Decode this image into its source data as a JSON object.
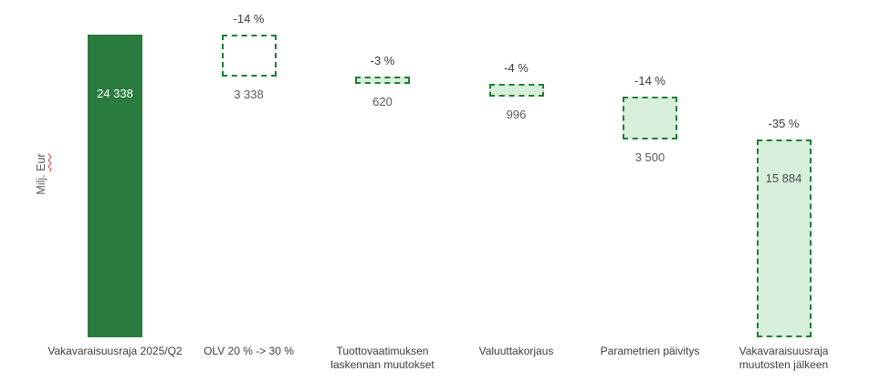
{
  "chart_data": {
    "type": "bar",
    "subtype": "waterfall",
    "title": "",
    "ylabel": "Milj. Eur",
    "ylabel_parts": {
      "prefix": "Milj. ",
      "underlined_word": "Eur"
    },
    "ylim": [
      0,
      24338
    ],
    "grid": false,
    "legend": null,
    "bars": [
      {
        "category": "Vakavaraisuusraja 2025/Q2",
        "category_lines": [
          "Vakavaraisuusraja 2025/Q2"
        ],
        "value": 24338,
        "value_display": "24 338",
        "percent_label": null,
        "kind": "start",
        "style": "solid",
        "value_label_pos": "inside"
      },
      {
        "category": "OLV 20 % -> 30 %",
        "category_lines": [
          "OLV 20 % -> 30 %"
        ],
        "value": 3338,
        "value_display": "3 338",
        "percent_label": "-14 %",
        "kind": "decrease",
        "style": "outline",
        "value_label_pos": "below"
      },
      {
        "category": "Tuottovaatimuksen laskennan muutokset",
        "category_lines": [
          "Tuottovaatimuksen",
          "laskennan muutokset"
        ],
        "value": 620,
        "value_display": "620",
        "percent_label": "-3 %",
        "kind": "decrease",
        "style": "light",
        "value_label_pos": "below"
      },
      {
        "category": "Valuuttakorjaus",
        "category_lines": [
          "Valuuttakorjaus"
        ],
        "value": 996,
        "value_display": "996",
        "percent_label": "-4 %",
        "kind": "decrease",
        "style": "light",
        "value_label_pos": "below"
      },
      {
        "category": "Parametrien päivitys",
        "category_lines": [
          "Parametrien päivitys"
        ],
        "value": 3500,
        "value_display": "3 500",
        "percent_label": "-14 %",
        "kind": "decrease",
        "style": "light",
        "value_label_pos": "below"
      },
      {
        "category": "Vakavaraisuusraja muutosten jälkeen",
        "category_lines": [
          "Vakavaraisuusraja",
          "muutosten jälkeen"
        ],
        "value": 15884,
        "value_display": "15 884",
        "percent_label": "-35 %",
        "kind": "end",
        "style": "light",
        "value_label_pos": "inside"
      }
    ],
    "colors": {
      "solid_fill": "#2a7c3e",
      "light_fill": "#d7eeda",
      "dash_border": "#1e7c34",
      "percent_text": "#3a3a3a",
      "value_below_text": "#595959",
      "value_inside_solid": "#ffffff",
      "value_inside_light": "#4a4a4a",
      "axis_text": "#3d3d3d",
      "ylabel_text": "#595959",
      "spellcheck_underline": "#e03a3a"
    }
  }
}
